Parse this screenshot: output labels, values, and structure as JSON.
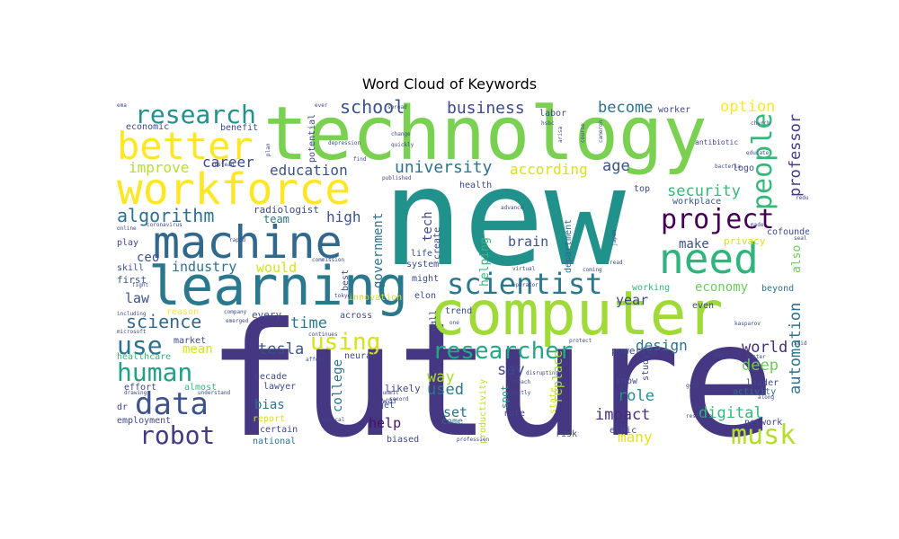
{
  "chart_data": {
    "type": "wordcloud",
    "title": "Word Cloud of Keywords",
    "colormap": "viridis",
    "background": "#ffffff",
    "words": [
      {
        "text": "future",
        "size": 175,
        "color": "#453781"
      },
      {
        "text": "new",
        "size": 150,
        "color": "#21918c"
      },
      {
        "text": "technology",
        "size": 82,
        "color": "#7ad151"
      },
      {
        "text": "computer",
        "size": 68,
        "color": "#a0da39"
      },
      {
        "text": "learning",
        "size": 60,
        "color": "#2a788e"
      },
      {
        "text": "machine",
        "size": 50,
        "color": "#31688e"
      },
      {
        "text": "workforce",
        "size": 48,
        "color": "#fde725"
      },
      {
        "text": "better",
        "size": 42,
        "color": "#fde725"
      },
      {
        "text": "need",
        "size": 46,
        "color": "#2fb47c"
      },
      {
        "text": "scientist",
        "size": 32,
        "color": "#2a788e"
      },
      {
        "text": "researcher",
        "size": 26,
        "color": "#22a884"
      },
      {
        "text": "research",
        "size": 28,
        "color": "#21918c"
      },
      {
        "text": "project",
        "size": 30,
        "color": "#440154"
      },
      {
        "text": "people",
        "size": 30,
        "color": "#35b779"
      },
      {
        "text": "data",
        "size": 34,
        "color": "#3b528b"
      },
      {
        "text": "robot",
        "size": 28,
        "color": "#443983"
      },
      {
        "text": "human",
        "size": 28,
        "color": "#1fa187"
      },
      {
        "text": "musk",
        "size": 30,
        "color": "#b5de2b"
      },
      {
        "text": "school",
        "size": 20,
        "color": "#3b528b"
      },
      {
        "text": "using",
        "size": 26,
        "color": "#d8e219"
      },
      {
        "text": "use",
        "size": 28,
        "color": "#2c728e"
      },
      {
        "text": "algorithm",
        "size": 20,
        "color": "#2c728e"
      },
      {
        "text": "business",
        "size": 18,
        "color": "#3e4989"
      },
      {
        "text": "become",
        "size": 17,
        "color": "#2d708e"
      },
      {
        "text": "option",
        "size": 17,
        "color": "#fde725"
      },
      {
        "text": "professor",
        "size": 17,
        "color": "#443983"
      },
      {
        "text": "university",
        "size": 18,
        "color": "#2c728e"
      },
      {
        "text": "according",
        "size": 16,
        "color": "#d8e219"
      },
      {
        "text": "improve",
        "size": 16,
        "color": "#b5de2b"
      },
      {
        "text": "career",
        "size": 16,
        "color": "#3e4989"
      },
      {
        "text": "education",
        "size": 16,
        "color": "#3b528b"
      },
      {
        "text": "age",
        "size": 17,
        "color": "#3b528b"
      },
      {
        "text": "security",
        "size": 17,
        "color": "#35b779"
      },
      {
        "text": "science",
        "size": 20,
        "color": "#31688e"
      },
      {
        "text": "time",
        "size": 17,
        "color": "#2a788e"
      },
      {
        "text": "tesla",
        "size": 17,
        "color": "#3b528b"
      },
      {
        "text": "world",
        "size": 17,
        "color": "#472d7b"
      },
      {
        "text": "design",
        "size": 16,
        "color": "#2c728e"
      },
      {
        "text": "deep",
        "size": 17,
        "color": "#6ccd5a"
      },
      {
        "text": "automation",
        "size": 17,
        "color": "#2c728e"
      },
      {
        "text": "digital",
        "size": 17,
        "color": "#35b779"
      },
      {
        "text": "impact",
        "size": 17,
        "color": "#472d7b"
      },
      {
        "text": "role",
        "size": 17,
        "color": "#21918c"
      },
      {
        "text": "many",
        "size": 16,
        "color": "#e5e419"
      },
      {
        "text": "say",
        "size": 17,
        "color": "#3e4989"
      },
      {
        "text": "way",
        "size": 17,
        "color": "#addc30"
      },
      {
        "text": "used",
        "size": 17,
        "color": "#2a788e"
      },
      {
        "text": "set",
        "size": 15,
        "color": "#2c728e"
      },
      {
        "text": "help",
        "size": 15,
        "color": "#471063"
      },
      {
        "text": "high",
        "size": 16,
        "color": "#3b528b"
      },
      {
        "text": "industry",
        "size": 15,
        "color": "#2c728e"
      },
      {
        "text": "would",
        "size": 15,
        "color": "#d8e219"
      },
      {
        "text": "year",
        "size": 15,
        "color": "#3e4989"
      },
      {
        "text": "economy",
        "size": 14,
        "color": "#6ccd5a"
      },
      {
        "text": "make",
        "size": 14,
        "color": "#3b528b"
      },
      {
        "text": "brain",
        "size": 15,
        "color": "#3b528b"
      },
      {
        "text": "law",
        "size": 15,
        "color": "#3b528b"
      },
      {
        "text": "mean",
        "size": 14,
        "color": "#d8e219"
      },
      {
        "text": "bias",
        "size": 14,
        "color": "#2c728e"
      },
      {
        "text": "ceo",
        "size": 14,
        "color": "#3b528b"
      },
      {
        "text": "government",
        "size": 14,
        "color": "#2c728e"
      },
      {
        "text": "tech",
        "size": 14,
        "color": "#3e4989"
      },
      {
        "text": "helping",
        "size": 13,
        "color": "#35b779"
      },
      {
        "text": "college",
        "size": 14,
        "color": "#2c728e"
      },
      {
        "text": "replace",
        "size": 14,
        "color": "#a0da39"
      },
      {
        "text": "productivity",
        "size": 10,
        "color": "#bddf26"
      },
      {
        "text": "spot",
        "size": 11,
        "color": "#21918c"
      },
      {
        "text": "state",
        "size": 10,
        "color": "#d8e219"
      },
      {
        "text": "department",
        "size": 10,
        "color": "#31688e"
      },
      {
        "text": "also",
        "size": 13,
        "color": "#6ccd5a"
      },
      {
        "text": "increasingly",
        "size": 10,
        "color": "#3e4989"
      },
      {
        "text": "logo",
        "size": 10,
        "color": "#3e4989"
      },
      {
        "text": "workplace",
        "size": 10,
        "color": "#3b528b"
      },
      {
        "text": "cofounder",
        "size": 10,
        "color": "#3e4989"
      },
      {
        "text": "privacy",
        "size": 11,
        "color": "#d8e219"
      },
      {
        "text": "first",
        "size": 11,
        "color": "#3b528b"
      },
      {
        "text": "play",
        "size": 10,
        "color": "#3e4989"
      },
      {
        "text": "skill",
        "size": 10,
        "color": "#3b528b"
      },
      {
        "text": "team",
        "size": 12,
        "color": "#2c728e"
      },
      {
        "text": "radiologist",
        "size": 11,
        "color": "#3e4989"
      },
      {
        "text": "reason",
        "size": 10,
        "color": "#fde725"
      },
      {
        "text": "every",
        "size": 11,
        "color": "#3e4989"
      },
      {
        "text": "across",
        "size": 10,
        "color": "#3e4989"
      },
      {
        "text": "innovation",
        "size": 10,
        "color": "#d8e219"
      },
      {
        "text": "neural",
        "size": 10,
        "color": "#3e4989"
      },
      {
        "text": "likely",
        "size": 11,
        "color": "#3e4989"
      },
      {
        "text": "lawyer",
        "size": 10,
        "color": "#3e4989"
      },
      {
        "text": "decade",
        "size": 10,
        "color": "#3e4989"
      },
      {
        "text": "report",
        "size": 10,
        "color": "#d8e219"
      },
      {
        "text": "certain",
        "size": 10,
        "color": "#3e4989"
      },
      {
        "text": "national",
        "size": 10,
        "color": "#2c728e"
      },
      {
        "text": "biased",
        "size": 10,
        "color": "#3e4989"
      },
      {
        "text": "rule",
        "size": 10,
        "color": "#3e4989"
      },
      {
        "text": "come",
        "size": 10,
        "color": "#2c728e"
      },
      {
        "text": "get",
        "size": 10,
        "color": "#3e4989"
      },
      {
        "text": "risk",
        "size": 10,
        "color": "#3e4989"
      },
      {
        "text": "ethic",
        "size": 10,
        "color": "#3e4989"
      },
      {
        "text": "know",
        "size": 10,
        "color": "#3e4989"
      },
      {
        "text": "powerful",
        "size": 11,
        "color": "#3e4989"
      },
      {
        "text": "study",
        "size": 10,
        "color": "#3e4989"
      },
      {
        "text": "leader",
        "size": 10,
        "color": "#3e4989"
      },
      {
        "text": "activity",
        "size": 10,
        "color": "#2c728e"
      },
      {
        "text": "network",
        "size": 10,
        "color": "#3e4989"
      },
      {
        "text": "even",
        "size": 10,
        "color": "#3e4989"
      },
      {
        "text": "beyond",
        "size": 10,
        "color": "#2c728e"
      },
      {
        "text": "working",
        "size": 10,
        "color": "#35b779"
      },
      {
        "text": "market",
        "size": 10,
        "color": "#3e4989"
      },
      {
        "text": "healthcare",
        "size": 10,
        "color": "#35b779"
      },
      {
        "text": "effort",
        "size": 10,
        "color": "#3e4989"
      },
      {
        "text": "almost",
        "size": 10,
        "color": "#35b779"
      },
      {
        "text": "dr",
        "size": 10,
        "color": "#3e4989"
      },
      {
        "text": "employment",
        "size": 10,
        "color": "#3e4989"
      },
      {
        "text": "economic",
        "size": 10,
        "color": "#3e4989"
      },
      {
        "text": "benefit",
        "size": 10,
        "color": "#3e4989"
      },
      {
        "text": "potential",
        "size": 10,
        "color": "#3e4989"
      },
      {
        "text": "health",
        "size": 10,
        "color": "#3e4989"
      },
      {
        "text": "life",
        "size": 10,
        "color": "#3e4989"
      },
      {
        "text": "create",
        "size": 10,
        "color": "#3e4989"
      },
      {
        "text": "system",
        "size": 10,
        "color": "#3e4989"
      },
      {
        "text": "might",
        "size": 10,
        "color": "#3e4989"
      },
      {
        "text": "elon",
        "size": 10,
        "color": "#3e4989"
      },
      {
        "text": "call",
        "size": 10,
        "color": "#3e4989"
      },
      {
        "text": "trend",
        "size": 10,
        "color": "#3e4989"
      },
      {
        "text": "top",
        "size": 10,
        "color": "#3e4989"
      },
      {
        "text": "worker",
        "size": 10,
        "color": "#3e4989"
      },
      {
        "text": "labor",
        "size": 10,
        "color": "#3e4989"
      },
      {
        "text": "war",
        "size": 10,
        "color": "#3e4989"
      },
      {
        "text": "best",
        "size": 10,
        "color": "#3e4989"
      },
      {
        "text": "antibiotic",
        "size": 8,
        "color": "#3e4989"
      },
      {
        "text": "hsbc",
        "size": 6,
        "color": "#3e4989"
      },
      {
        "text": "arisa",
        "size": 6,
        "color": "#3e4989"
      },
      {
        "text": "course",
        "size": 6,
        "color": "#3e4989"
      },
      {
        "text": "cameron",
        "size": 6,
        "color": "#3e4989"
      },
      {
        "text": "church",
        "size": 6,
        "color": "#3e4989"
      },
      {
        "text": "bacteria",
        "size": 6,
        "color": "#3e4989"
      },
      {
        "text": "educate",
        "size": 6,
        "color": "#3e4989"
      },
      {
        "text": "reduce",
        "size": 6,
        "color": "#3e4989"
      },
      {
        "text": "made",
        "size": 6,
        "color": "#3e4989"
      },
      {
        "text": "seal",
        "size": 6,
        "color": "#3e4989"
      },
      {
        "text": "coronavirus",
        "size": 6,
        "color": "#3e4989"
      },
      {
        "text": "rapid",
        "size": 6,
        "color": "#3e4989"
      },
      {
        "text": "online",
        "size": 6,
        "color": "#3e4989"
      },
      {
        "text": "fight",
        "size": 6,
        "color": "#3e4989"
      },
      {
        "text": "instead",
        "size": 6,
        "color": "#3e4989"
      },
      {
        "text": "plan",
        "size": 6,
        "color": "#3e4989"
      },
      {
        "text": "change",
        "size": 6,
        "color": "#3e4989"
      },
      {
        "text": "depression",
        "size": 6,
        "color": "#3e4989"
      },
      {
        "text": "quickly",
        "size": 6,
        "color": "#3e4989"
      },
      {
        "text": "find",
        "size": 6,
        "color": "#3e4989"
      },
      {
        "text": "published",
        "size": 6,
        "color": "#3e4989"
      },
      {
        "text": "advance",
        "size": 6,
        "color": "#3e4989"
      },
      {
        "text": "japan",
        "size": 6,
        "color": "#3e4989"
      },
      {
        "text": "coming",
        "size": 6,
        "color": "#3e4989"
      },
      {
        "text": "read",
        "size": 6,
        "color": "#3e4989"
      },
      {
        "text": "virtual",
        "size": 6,
        "color": "#3e4989"
      },
      {
        "text": "operator",
        "size": 6,
        "color": "#3e4989"
      },
      {
        "text": "commission",
        "size": 6,
        "color": "#3e4989"
      },
      {
        "text": "including",
        "size": 6,
        "color": "#3e4989"
      },
      {
        "text": "company",
        "size": 6,
        "color": "#3e4989"
      },
      {
        "text": "emerged",
        "size": 6,
        "color": "#3e4989"
      },
      {
        "text": "microsoft",
        "size": 6,
        "color": "#3e4989"
      },
      {
        "text": "continues",
        "size": 6,
        "color": "#3e4989"
      },
      {
        "text": "tokyo",
        "size": 6,
        "color": "#3e4989"
      },
      {
        "text": "one",
        "size": 6,
        "color": "#3e4989"
      },
      {
        "text": "protect",
        "size": 6,
        "color": "#3e4989"
      },
      {
        "text": "kasparov",
        "size": 6,
        "color": "#3e4989"
      },
      {
        "text": "said",
        "size": 6,
        "color": "#3e4989"
      },
      {
        "text": "day",
        "size": 6,
        "color": "#3e4989"
      },
      {
        "text": "faster",
        "size": 6,
        "color": "#3e4989"
      },
      {
        "text": "along",
        "size": 6,
        "color": "#3e4989"
      },
      {
        "text": "affect",
        "size": 6,
        "color": "#3e4989"
      },
      {
        "text": "summit",
        "size": 6,
        "color": "#3e4989"
      },
      {
        "text": "record",
        "size": 6,
        "color": "#3e4989"
      },
      {
        "text": "exactly",
        "size": 6,
        "color": "#3e4989"
      },
      {
        "text": "teach",
        "size": 6,
        "color": "#3e4989"
      },
      {
        "text": "disrupting",
        "size": 6,
        "color": "#3e4989"
      },
      {
        "text": "good",
        "size": 6,
        "color": "#3e4989"
      },
      {
        "text": "response",
        "size": 6,
        "color": "#3e4989"
      },
      {
        "text": "understand",
        "size": 6,
        "color": "#3e4989"
      },
      {
        "text": "drawing",
        "size": 6,
        "color": "#3e4989"
      },
      {
        "text": "ethical",
        "size": 6,
        "color": "#3e4989"
      },
      {
        "text": "profession",
        "size": 6,
        "color": "#3e4989"
      },
      {
        "text": "spread",
        "size": 6,
        "color": "#3e4989"
      },
      {
        "text": "ever",
        "size": 6,
        "color": "#3e4989"
      },
      {
        "text": "ema",
        "size": 6,
        "color": "#3e4989"
      }
    ]
  }
}
